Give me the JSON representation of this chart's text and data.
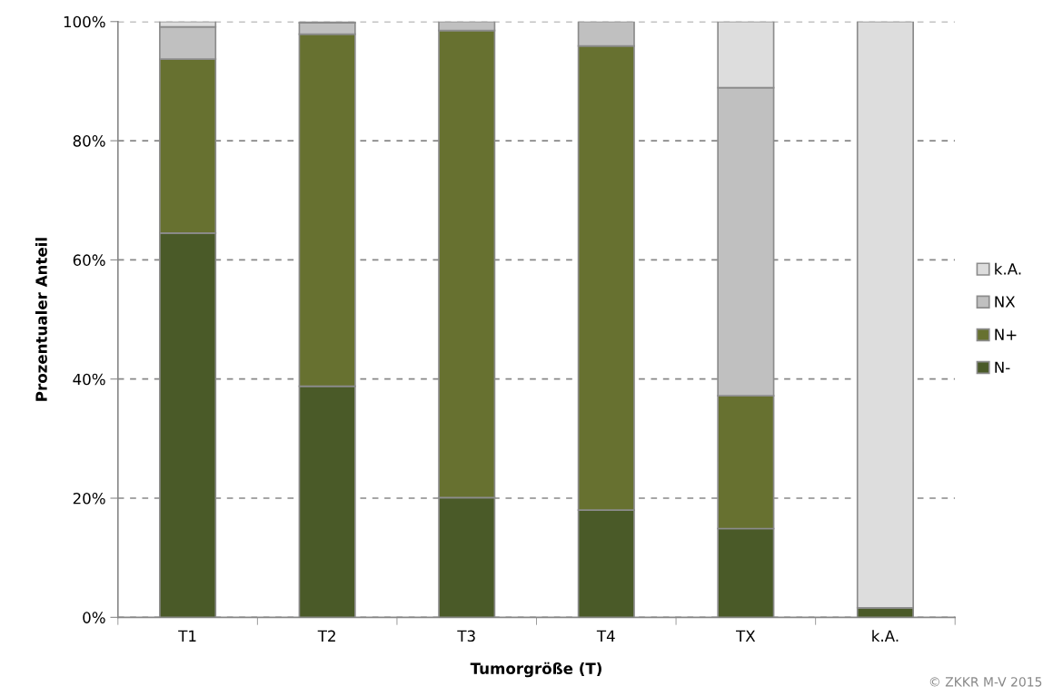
{
  "chart_data": {
    "type": "bar",
    "stacked": true,
    "xlabel": "Tumorgröße (T)",
    "ylabel": "Prozentualer Anteil",
    "categories": [
      "T1",
      "T2",
      "T3",
      "T4",
      "TX",
      "k.A."
    ],
    "series": [
      {
        "name": "N-",
        "color": "#4a5a28",
        "values": [
          64.5,
          38.8,
          20.1,
          18.0,
          14.9,
          1.6
        ]
      },
      {
        "name": "N+",
        "color": "#677130",
        "values": [
          29.2,
          59.1,
          78.4,
          77.9,
          22.3,
          0
        ]
      },
      {
        "name": "NX",
        "color": "#c0c0c0",
        "values": [
          5.4,
          1.9,
          1.5,
          4.1,
          51.7,
          0
        ]
      },
      {
        "name": "k.A.",
        "color": "#dddddd",
        "values": [
          0.9,
          0.2,
          0,
          0,
          11.1,
          98.4
        ]
      }
    ],
    "ylim": [
      0,
      100
    ],
    "yticks": [
      {
        "value": 0,
        "label": "0%"
      },
      {
        "value": 20,
        "label": "20%"
      },
      {
        "value": 40,
        "label": "40%"
      },
      {
        "value": 60,
        "label": "60%"
      },
      {
        "value": 80,
        "label": "80%"
      },
      {
        "value": 100,
        "label": "100%"
      }
    ],
    "grid": "y",
    "legend": "right",
    "annotations": [
      "© ZKKR M-V 2015"
    ]
  }
}
